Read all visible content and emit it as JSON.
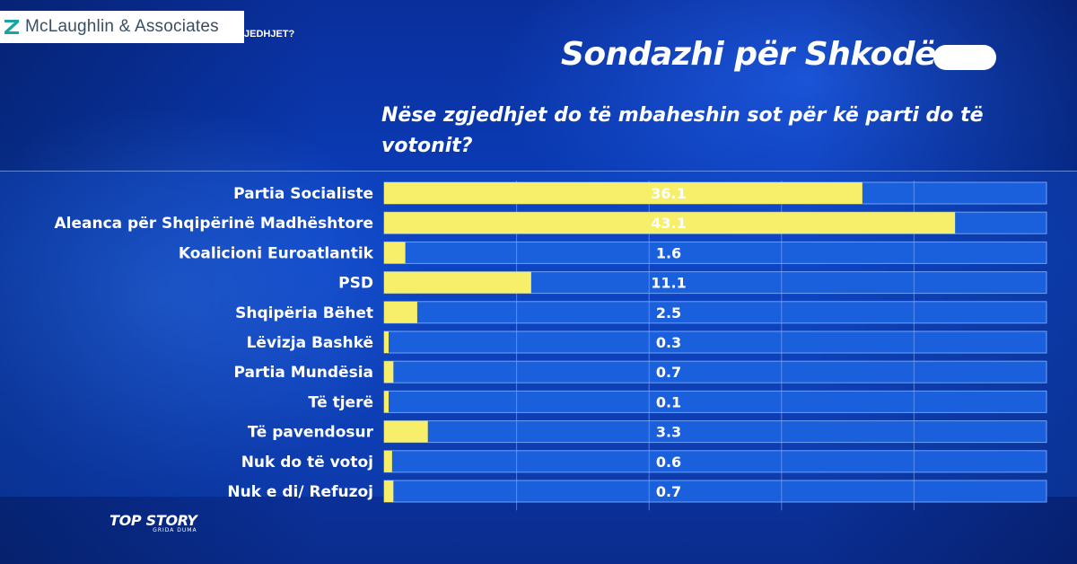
{
  "logo": {
    "text": "McLaughlin & Associates",
    "icon": "z-mark-icon",
    "color": "#1aa3a3"
  },
  "ticker": {
    "text": "JEDHJET?"
  },
  "header": {
    "title": "Sondazhi për Shkodën",
    "question": "Nëse zgjedhjet do të mbaheshin sot për kë parti do të votonit?"
  },
  "brand": {
    "main": "TOP STORY",
    "sub": "GRIDA DUMA"
  },
  "chart_data": {
    "type": "bar",
    "orientation": "horizontal",
    "categories": [
      "Partia Socialiste",
      "Aleanca për Shqipërinë Madhështore",
      "Koalicioni Euroatlantik",
      "PSD",
      "Shqipëria Bëhet",
      "Lëvizja Bashkë",
      "Partia Mundësia",
      "Të tjerë",
      "Të pavendosur",
      "Nuk do të votoj",
      "Nuk e di/ Refuzoj"
    ],
    "values": [
      36.1,
      43.1,
      1.6,
      11.1,
      2.5,
      0.3,
      0.7,
      0.1,
      3.3,
      0.6,
      0.7
    ],
    "value_labels": [
      "36.1",
      "43.1",
      "1.6",
      "11.1",
      "2.5",
      "0.3",
      "0.7",
      "0.1",
      "3.3",
      "0.6",
      "0.7"
    ],
    "xlim": [
      0,
      50
    ],
    "grid": true,
    "colors": {
      "bar": "#f7ee6a",
      "track": "#1a5fdc",
      "track_border": "#6fa0f5"
    }
  }
}
